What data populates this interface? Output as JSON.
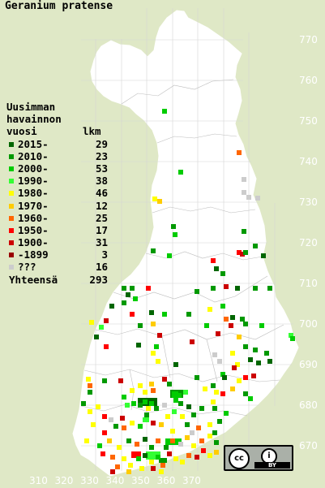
{
  "title": "Geranium pratense",
  "legend": {
    "heading_line1": "Uusimman",
    "heading_line2": "havainnon",
    "heading_col1": "vuosi",
    "heading_col2": "lkm",
    "rows": [
      {
        "label": "2015-",
        "count": "29",
        "color": "#006600"
      },
      {
        "label": "2010-",
        "count": "23",
        "color": "#009900"
      },
      {
        "label": "2000-",
        "count": "53",
        "color": "#00cc00"
      },
      {
        "label": "1990-",
        "count": "38",
        "color": "#33ff33"
      },
      {
        "label": "1980-",
        "count": "46",
        "color": "#ffff00"
      },
      {
        "label": "1970-",
        "count": "12",
        "color": "#ffcc00"
      },
      {
        "label": "1960-",
        "count": "25",
        "color": "#ff6600"
      },
      {
        "label": "1950-",
        "count": "17",
        "color": "#ff0000"
      },
      {
        "label": "1900-",
        "count": "31",
        "color": "#cc0000"
      },
      {
        "label": "-1899",
        "count": "3",
        "color": "#990000"
      },
      {
        "label": "???",
        "count": "16",
        "color": "#cccccc"
      }
    ],
    "total_label": "Yhteensä",
    "total_count": "293"
  },
  "y_ticks": [
    "770",
    "760",
    "750",
    "740",
    "730",
    "720",
    "710",
    "700",
    "690",
    "680",
    "670"
  ],
  "x_ticks": [
    "310",
    "320",
    "330",
    "340",
    "350",
    "360",
    "370"
  ],
  "license": {
    "cc": "cc",
    "by_icon": "i",
    "by_text": "BY"
  },
  "colors": {
    "background": "#dfe8c6",
    "land": "#ffffff",
    "border": "#c8c8c8"
  }
}
